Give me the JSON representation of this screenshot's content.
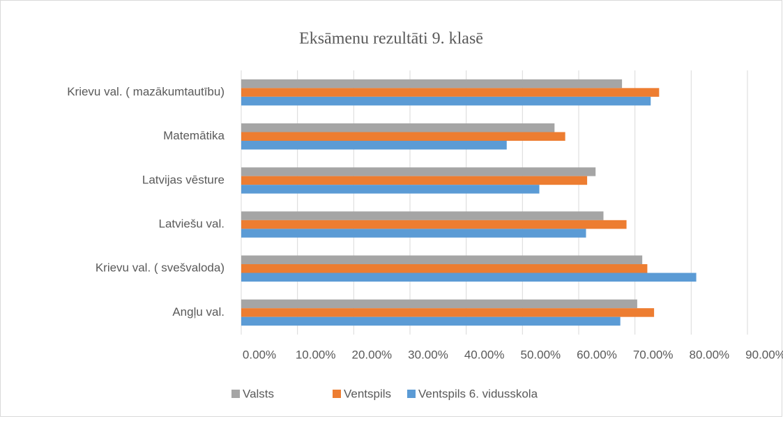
{
  "chart_data": {
    "type": "hbar",
    "title": "Eksāmenu rezultāti 9. klasē",
    "categories": [
      "Angļu val.",
      "Krievu val. ( svešvaloda)",
      "Latviešu val.",
      "Latvijas vēsture",
      "Matemātika",
      "Krievu val. ( mazākumtautību)"
    ],
    "series": [
      {
        "name": "Valsts",
        "color": "#a5a5a5",
        "values": [
          70.4,
          71.3,
          64.4,
          63.0,
          55.7,
          67.7
        ]
      },
      {
        "name": "Ventspils",
        "color": "#ed7d31",
        "values": [
          73.4,
          72.2,
          68.5,
          61.5,
          57.6,
          74.3
        ]
      },
      {
        "name": "Ventspils 6. vidusskola",
        "color": "#5b9bd5",
        "values": [
          67.4,
          80.9,
          61.3,
          53.0,
          47.2,
          72.8
        ]
      }
    ],
    "xlim": [
      0,
      90
    ],
    "xticks": [
      {
        "value": 0,
        "label": "0.00%"
      },
      {
        "value": 10,
        "label": "10.00%"
      },
      {
        "value": 20,
        "label": "20.00%"
      },
      {
        "value": 30,
        "label": "30.00%"
      },
      {
        "value": 40,
        "label": "40.00%"
      },
      {
        "value": 50,
        "label": "50.00%"
      },
      {
        "value": 60,
        "label": "60.00%"
      },
      {
        "value": 70,
        "label": "70.00%"
      },
      {
        "value": 80,
        "label": "80.00%"
      },
      {
        "value": 90,
        "label": "90.00%"
      }
    ],
    "grid": true,
    "legend": "bottom"
  }
}
